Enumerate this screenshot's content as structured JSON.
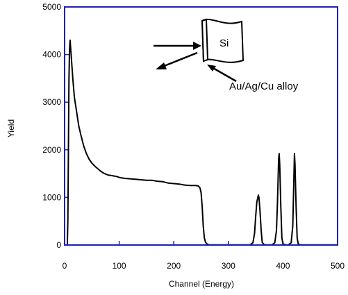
{
  "chart_data": {
    "type": "line",
    "title": "",
    "xlabel": "Channel (Energy)",
    "ylabel": "Yield",
    "xlim": [
      0,
      500
    ],
    "ylim": [
      0,
      5000
    ],
    "xticks": [
      0,
      100,
      200,
      300,
      400,
      500
    ],
    "yticks": [
      0,
      1000,
      2000,
      3000,
      4000,
      5000
    ],
    "grid": false,
    "frame_color": "#1f1fb4",
    "series_color": "#000000",
    "series": [
      {
        "x": [
          0,
          5,
          6,
          7,
          8,
          9,
          10,
          12,
          15,
          18,
          22,
          26,
          30,
          35,
          40,
          45,
          50,
          55,
          60,
          65,
          70,
          75,
          80,
          85,
          90,
          95,
          100,
          110,
          120,
          130,
          140,
          150,
          160,
          170,
          180,
          190,
          200,
          210,
          220,
          230,
          240,
          245,
          248,
          250,
          252,
          254,
          256,
          258,
          260,
          262,
          264,
          266,
          270,
          280,
          300,
          320,
          340,
          345,
          348,
          350,
          352,
          354,
          355,
          356,
          358,
          360,
          362,
          365,
          370,
          380,
          385,
          388,
          390,
          392,
          393,
          394,
          396,
          398,
          400,
          405,
          410,
          415,
          418,
          420,
          421,
          422,
          424,
          426,
          428,
          432,
          440,
          460,
          480,
          500
        ],
        "y": [
          0,
          0,
          500,
          2000,
          3500,
          4100,
          4300,
          4000,
          3500,
          3100,
          2800,
          2500,
          2300,
          2080,
          1920,
          1800,
          1720,
          1660,
          1610,
          1560,
          1520,
          1490,
          1470,
          1460,
          1450,
          1440,
          1420,
          1400,
          1390,
          1380,
          1370,
          1360,
          1360,
          1340,
          1330,
          1300,
          1290,
          1280,
          1260,
          1250,
          1250,
          1240,
          1200,
          1100,
          800,
          400,
          150,
          60,
          30,
          15,
          8,
          5,
          5,
          5,
          5,
          5,
          5,
          50,
          250,
          600,
          900,
          1000,
          1050,
          1000,
          700,
          300,
          60,
          10,
          5,
          5,
          50,
          300,
          900,
          1800,
          1920,
          1700,
          800,
          150,
          20,
          5,
          5,
          50,
          400,
          1400,
          1920,
          1700,
          800,
          150,
          20,
          5,
          5,
          5,
          5,
          5
        ]
      }
    ],
    "annotations": {
      "layer_label": "Si",
      "alloy_label": "Au/Ag/Cu alloy"
    }
  }
}
